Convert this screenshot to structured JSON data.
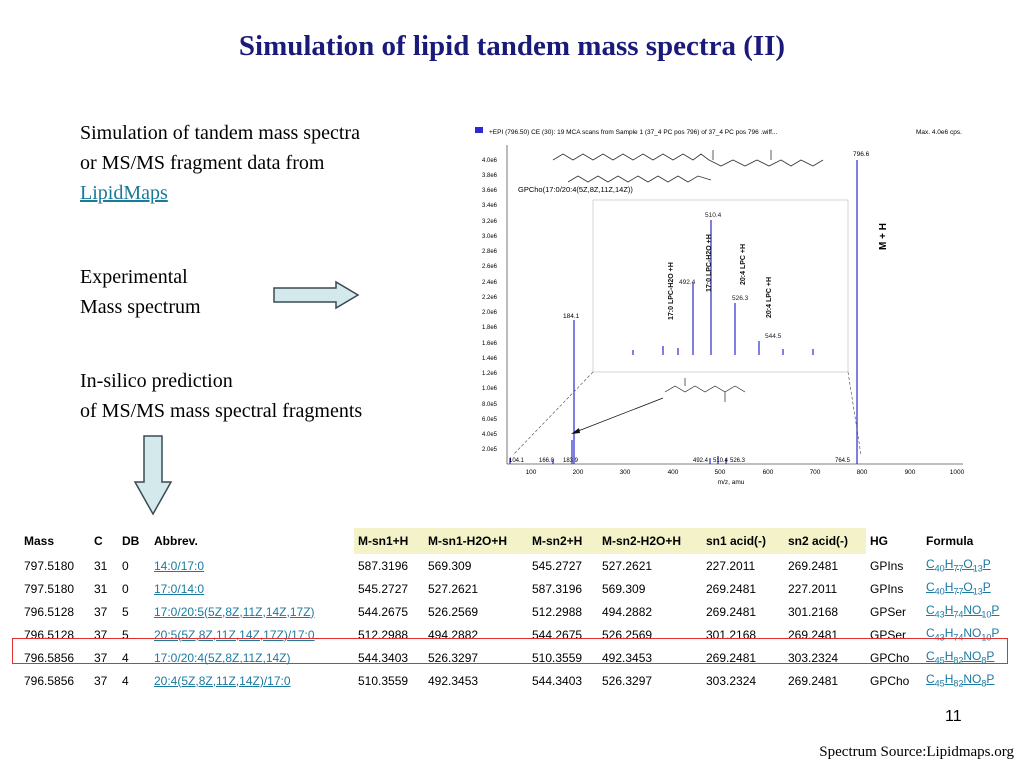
{
  "title": "Simulation of lipid tandem mass spectra (II)",
  "bullets": {
    "sim_line1": "Simulation of tandem mass spectra",
    "sim_line2": "or MS/MS fragment data from",
    "sim_link": "LipidMaps",
    "exp_line1": "Experimental",
    "exp_line2": "Mass spectrum",
    "insilico_line1": "In-silico prediction",
    "insilico_line2": "of MS/MS mass spectral fragments"
  },
  "spectrum": {
    "header": "+EPI (796.50) CE (30): 19 MCA scans from Sample 1 (37_4 PC pos 796) of 37_4 PC pos 796 .wiff...",
    "max_label": "Max. 4.0e6 cps.",
    "molecule_label": "GPCho(17:0/20:4(5Z,8Z,11Z,14Z))",
    "x_axis_label": "m/z, amu",
    "x_ticks": [
      "100",
      "200",
      "300",
      "400",
      "500",
      "600",
      "700",
      "800",
      "900",
      "1000"
    ],
    "y_ticks": [
      "4.0e6",
      "3.8e6",
      "3.6e6",
      "3.4e6",
      "3.2e6",
      "3.0e6",
      "2.8e6",
      "2.6e6",
      "2.4e6",
      "2.2e6",
      "2.0e6",
      "1.8e6",
      "1.6e6",
      "1.4e6",
      "1.2e6",
      "1.0e6",
      "8.0e5",
      "6.0e5",
      "4.0e5",
      "2.0e5"
    ],
    "peak_796": "796.6",
    "peak_184": "184.1",
    "peak_510": "510.4",
    "peak_492": "492.4",
    "peak_526": "526.3",
    "peak_544": "544.5",
    "bottom_labels": [
      "104.1",
      "166.0",
      "183.9",
      "492.4",
      "510.4",
      "526.3",
      "764.5"
    ],
    "mh_label": "M + H",
    "inset_labels": [
      "17:0 LPC-H2O +H",
      "17:0 LPC-H2O +H",
      "20:4 LPC +H",
      "20:4 LPC +H"
    ]
  },
  "table": {
    "headers": [
      "Mass",
      "C",
      "DB",
      "Abbrev.",
      "",
      "M-sn1+H",
      "M-sn1-H2O+H",
      "M-sn2+H",
      "M-sn2-H2O+H",
      "sn1 acid(-)",
      "sn2 acid(-)",
      "HG",
      "Formula"
    ],
    "rows": [
      {
        "mass": "797.5180",
        "c": "31",
        "db": "0",
        "abbrev": "14:0/17:0",
        "msn1": "587.3196",
        "msn1h2o": "569.309",
        "msn2": "545.2727",
        "msn2h2o": "527.2621",
        "sn1acid": "227.2011",
        "sn2acid": "269.2481",
        "hg": "GPIns",
        "formula": "C40H77O13P"
      },
      {
        "mass": "797.5180",
        "c": "31",
        "db": "0",
        "abbrev": "17:0/14:0",
        "msn1": "545.2727",
        "msn1h2o": "527.2621",
        "msn2": "587.3196",
        "msn2h2o": "569.309",
        "sn1acid": "269.2481",
        "sn2acid": "227.2011",
        "hg": "GPIns",
        "formula": "C40H77O13P"
      },
      {
        "mass": "796.5128",
        "c": "37",
        "db": "5",
        "abbrev": "17:0/20:5(5Z,8Z,11Z,14Z,17Z)",
        "msn1": "544.2675",
        "msn1h2o": "526.2569",
        "msn2": "512.2988",
        "msn2h2o": "494.2882",
        "sn1acid": "269.2481",
        "sn2acid": "301.2168",
        "hg": "GPSer",
        "formula": "C43H74NO10P"
      },
      {
        "mass": "796.5128",
        "c": "37",
        "db": "5",
        "abbrev": "20:5(5Z,8Z,11Z,14Z,17Z)/17:0",
        "msn1": "512.2988",
        "msn1h2o": "494.2882",
        "msn2": "544.2675",
        "msn2h2o": "526.2569",
        "sn1acid": "301.2168",
        "sn2acid": "269.2481",
        "hg": "GPSer",
        "formula": "C43H74NO10P"
      },
      {
        "mass": "796.5856",
        "c": "37",
        "db": "4",
        "abbrev": "17:0/20:4(5Z,8Z,11Z,14Z)",
        "msn1": "544.3403",
        "msn1h2o": "526.3297",
        "msn2": "510.3559",
        "msn2h2o": "492.3453",
        "sn1acid": "269.2481",
        "sn2acid": "303.2324",
        "hg": "GPCho",
        "formula": "C45H82NO8P"
      },
      {
        "mass": "796.5856",
        "c": "37",
        "db": "4",
        "abbrev": "20:4(5Z,8Z,11Z,14Z)/17:0",
        "msn1": "510.3559",
        "msn1h2o": "492.3453",
        "msn2": "544.3403",
        "msn2h2o": "526.3297",
        "sn1acid": "303.2324",
        "sn2acid": "269.2481",
        "hg": "GPCho",
        "formula": "C45H82NO8P"
      }
    ]
  },
  "page_number": "11",
  "source": "Spectrum Source:Lipidmaps.org",
  "colors": {
    "title": "#1a1a7a",
    "link": "#1a7aa0",
    "highlight_border": "#e03030",
    "header_highlight": "#f3f2c8",
    "arrow_fill": "#d4e9ec",
    "peak": "#2a2ad0"
  }
}
